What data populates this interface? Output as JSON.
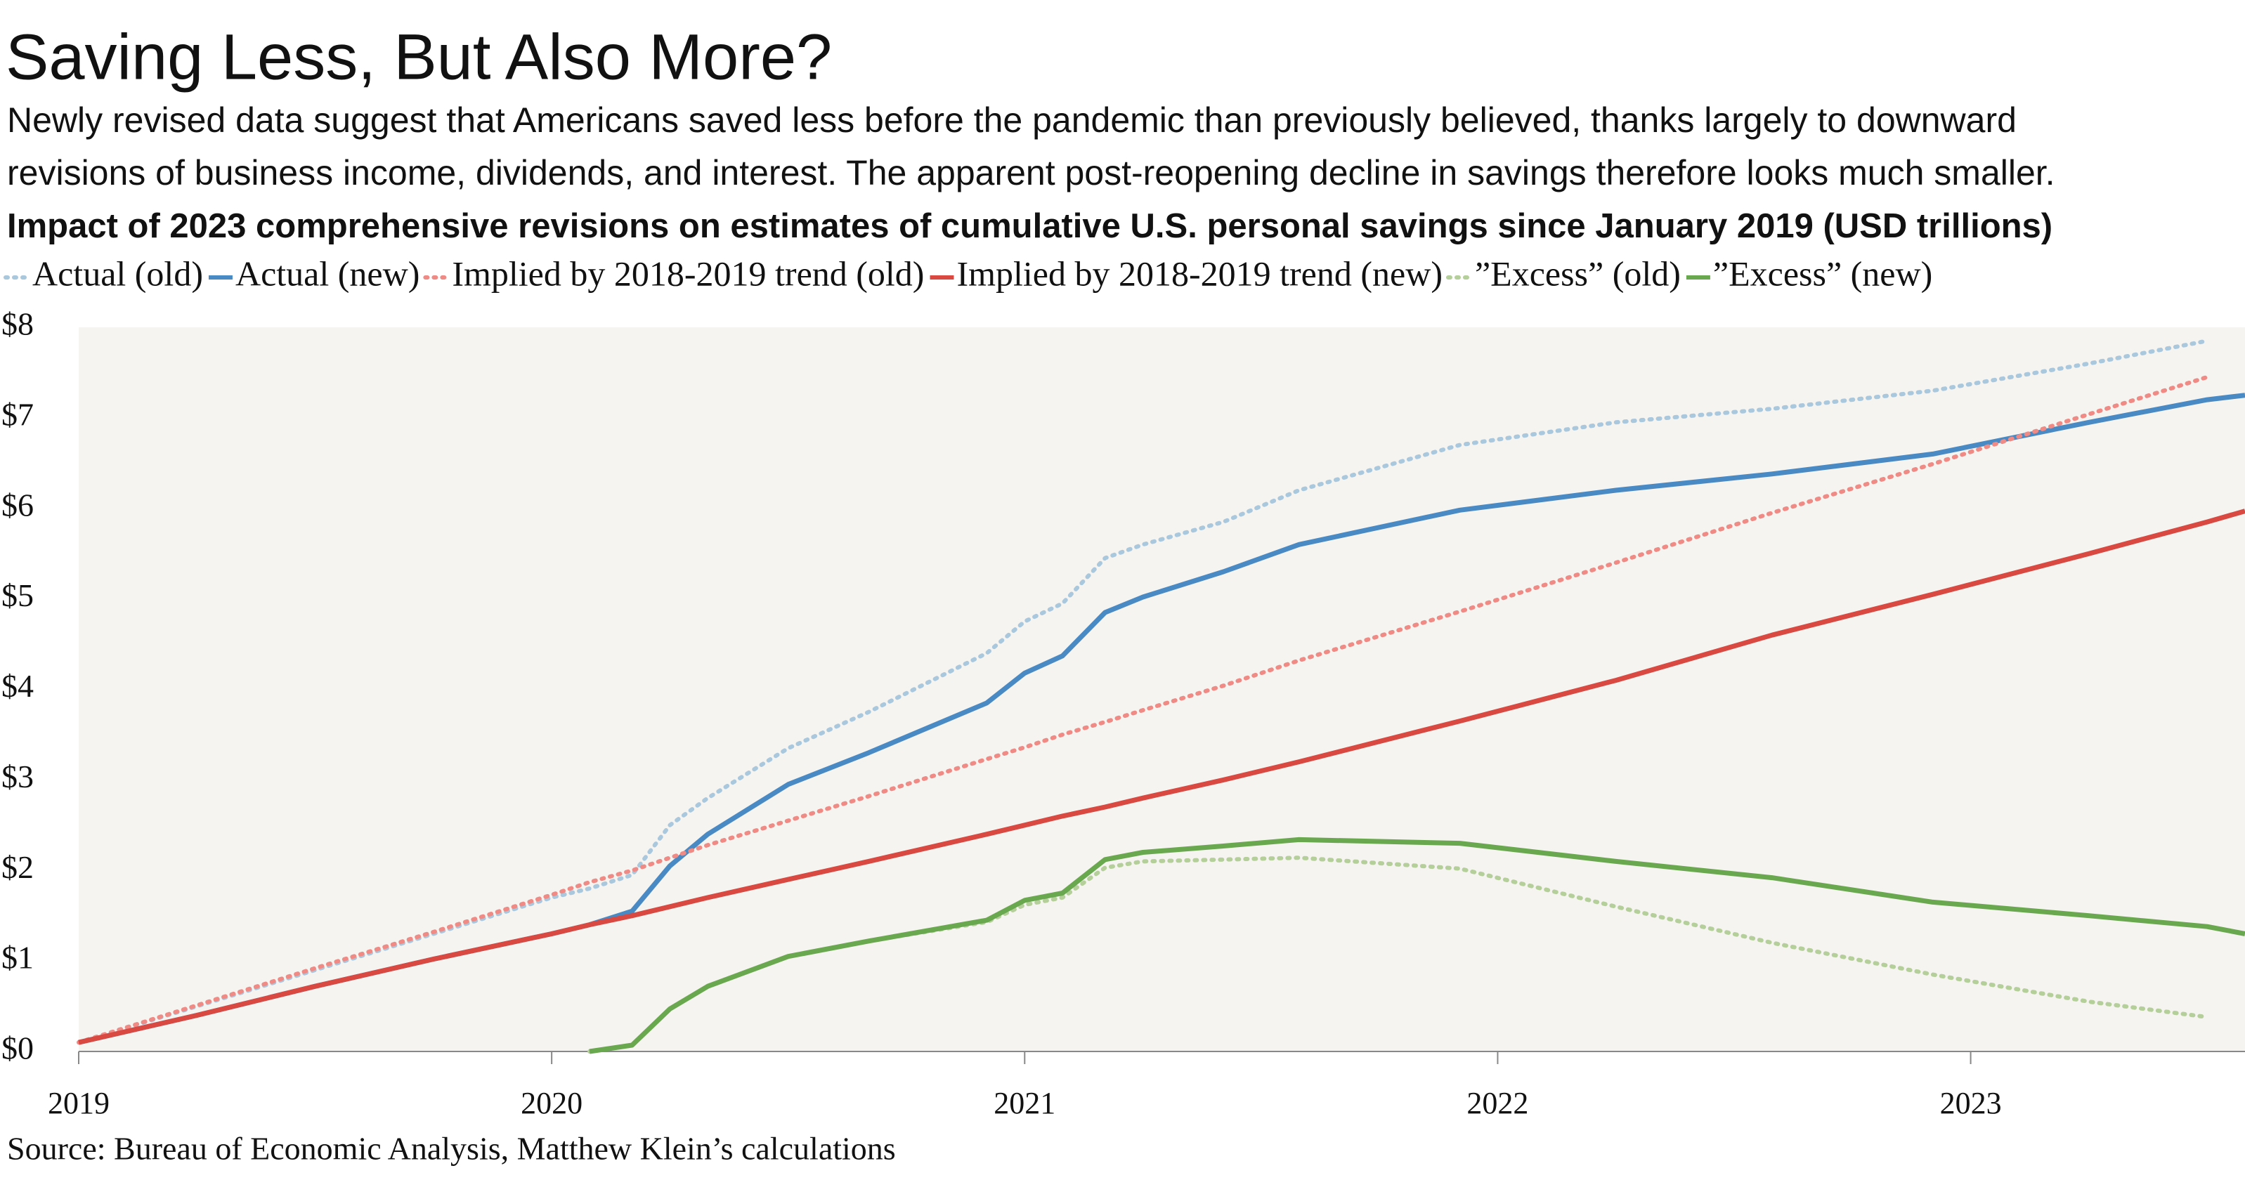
{
  "chart_data": {
    "type": "line",
    "title": "Saving Less, But Also More?",
    "subtitle": [
      "Newly revised data suggest that Americans saved less before the pandemic than previously believed, thanks largely to downward",
      "revisions of business income, dividends, and interest. The apparent post-reopening decline in savings therefore looks much smaller."
    ],
    "heading": "Impact of 2023 comprehensive revisions on estimates of cumulative U.S. personal savings since January 2019 (USD trillions)",
    "source": "Source: Bureau of Economic Analysis, Matthew Klein’s calculations",
    "x": [
      2019,
      2019.25,
      2019.5,
      2019.75,
      2020,
      2020.08,
      2020.17,
      2020.25,
      2020.33,
      2020.5,
      2020.67,
      2020.92,
      2021,
      2021.08,
      2021.17,
      2021.25,
      2021.42,
      2021.58,
      2021.92,
      2022.25,
      2022.58,
      2022.92,
      2023.25,
      2023.5,
      2023.58
    ],
    "xlim": [
      2019,
      2023.58
    ],
    "xticks": [
      2019,
      2020,
      2021,
      2022,
      2023
    ],
    "ylim": [
      0,
      8
    ],
    "yticks": [
      {
        "value": 0,
        "label": "$0"
      },
      {
        "value": 1,
        "label": "$1"
      },
      {
        "value": 2,
        "label": "$2"
      },
      {
        "value": 3,
        "label": "$3"
      },
      {
        "value": 4,
        "label": "$4"
      },
      {
        "value": 5,
        "label": "$5"
      },
      {
        "value": 6,
        "label": "$6"
      },
      {
        "value": 7,
        "label": "$7"
      },
      {
        "value": 8,
        "label": "$8"
      }
    ],
    "grid": false,
    "legend": "top",
    "series": [
      {
        "name": "Actual (old)",
        "color": "#a9c8de",
        "style": "dotted",
        "values": [
          0.1,
          0.5,
          0.9,
          1.3,
          1.7,
          1.8,
          1.95,
          2.5,
          2.8,
          3.35,
          3.75,
          4.4,
          4.75,
          4.95,
          5.45,
          5.6,
          5.85,
          6.2,
          6.7,
          6.95,
          7.1,
          7.3,
          7.6,
          7.85,
          null
        ]
      },
      {
        "name": "Actual (new)",
        "color": "#4a8ac4",
        "style": "solid",
        "values": [
          0.1,
          0.4,
          0.72,
          1.02,
          1.3,
          1.4,
          1.55,
          2.05,
          2.4,
          2.95,
          3.3,
          3.85,
          4.18,
          4.37,
          4.85,
          5.02,
          5.3,
          5.6,
          5.98,
          6.2,
          6.38,
          6.6,
          6.95,
          7.2,
          7.25
        ]
      },
      {
        "name": "Implied by 2018-2019 trend (old)",
        "color": "#f08a85",
        "style": "dotted",
        "values": [
          0.1,
          0.51,
          0.92,
          1.32,
          1.73,
          1.87,
          2.0,
          2.14,
          2.28,
          2.55,
          2.82,
          3.23,
          3.36,
          3.5,
          3.64,
          3.77,
          4.04,
          4.32,
          4.86,
          5.4,
          5.95,
          6.49,
          7.04,
          7.45,
          null
        ]
      },
      {
        "name": "Implied by 2018-2019 trend (new)",
        "color": "#d94841",
        "style": "solid",
        "values": [
          0.1,
          0.4,
          0.72,
          1.02,
          1.3,
          1.4,
          1.5,
          1.6,
          1.7,
          1.9,
          2.1,
          2.4,
          2.5,
          2.6,
          2.7,
          2.8,
          3.0,
          3.2,
          3.65,
          4.1,
          4.6,
          5.05,
          5.5,
          5.85,
          5.97
        ]
      },
      {
        "name": "”Excess” (old)",
        "color": "#b5cf9a",
        "style": "dotted",
        "values": [
          null,
          null,
          null,
          null,
          null,
          0.0,
          0.07,
          0.47,
          0.72,
          1.05,
          1.22,
          1.43,
          1.62,
          1.7,
          2.03,
          2.1,
          2.12,
          2.14,
          2.02,
          1.6,
          1.2,
          0.85,
          0.55,
          0.38,
          null
        ]
      },
      {
        "name": "”Excess” (new)",
        "color": "#6aa84f",
        "style": "solid",
        "values": [
          null,
          null,
          null,
          null,
          null,
          0.0,
          0.07,
          0.47,
          0.72,
          1.05,
          1.22,
          1.45,
          1.67,
          1.75,
          2.12,
          2.2,
          2.27,
          2.34,
          2.3,
          2.1,
          1.92,
          1.65,
          1.5,
          1.38,
          1.3
        ]
      }
    ]
  }
}
